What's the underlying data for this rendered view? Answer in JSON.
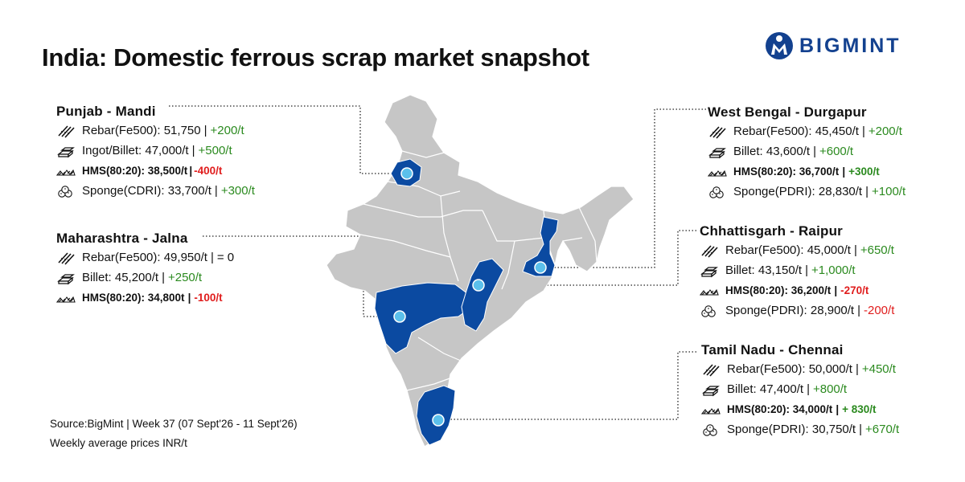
{
  "header": {
    "title": "India: Domestic ferrous scrap market snapshot",
    "brand": "BIGMINT",
    "brand_color": "#13418f"
  },
  "colors": {
    "highlight_state": "#0b4aa1",
    "marker": "#5bc0eb",
    "map_base": "#c6c6c6",
    "increase": "#2b8a1f",
    "decrease": "#e01d1d"
  },
  "icons": [
    "rebar-icon",
    "ingot-icon",
    "hms-scrap-icon",
    "sponge-iron-icon"
  ],
  "regions": {
    "punjab": {
      "title": "Punjab - Mandi",
      "rows": [
        {
          "icon": "rebar-icon",
          "label": "Rebar(Fe500): 51,750",
          "change": "+200/t",
          "dir": "up"
        },
        {
          "icon": "ingot-icon",
          "label": "Ingot/Billet: 47,000/t",
          "change": "+500/t",
          "dir": "up"
        },
        {
          "icon": "hms-scrap-icon",
          "label": "HMS(80:20): 38,500/t",
          "change": "-400/t",
          "dir": "down",
          "bold": true,
          "tight": true
        },
        {
          "icon": "sponge-iron-icon",
          "label": "Sponge(CDRI): 33,700/t",
          "change": "+300/t",
          "dir": "up"
        }
      ]
    },
    "maharashtra": {
      "title": "Maharashtra - Jalna",
      "rows": [
        {
          "icon": "rebar-icon",
          "label": "Rebar(Fe500): 49,950/t",
          "change": "= 0",
          "dir": "flat"
        },
        {
          "icon": "ingot-icon",
          "label": "Billet: 45,200/t",
          "change": "+250/t",
          "dir": "up"
        },
        {
          "icon": "hms-scrap-icon",
          "label": "HMS(80:20): 34,800t",
          "change": "-100/t",
          "dir": "down",
          "bold": true
        }
      ]
    },
    "west_bengal": {
      "title": "West Bengal - Durgapur",
      "rows": [
        {
          "icon": "rebar-icon",
          "label": "Rebar(Fe500): 45,450/t",
          "change": "+200/t",
          "dir": "up"
        },
        {
          "icon": "ingot-icon",
          "label": "Billet: 43,600/t",
          "change": "+600/t",
          "dir": "up"
        },
        {
          "icon": "hms-scrap-icon",
          "label": "HMS(80:20): 36,700/t",
          "change": "+300/t",
          "dir": "up",
          "bold": true
        },
        {
          "icon": "sponge-iron-icon",
          "label": "Sponge(PDRI): 28,830/t",
          "change": "+100/t",
          "dir": "up"
        }
      ]
    },
    "chhattisgarh": {
      "title": "Chhattisgarh - Raipur",
      "rows": [
        {
          "icon": "rebar-icon",
          "label": "Rebar(Fe500): 45,000/t",
          "change": "+650/t",
          "dir": "up"
        },
        {
          "icon": "ingot-icon",
          "label": "Billet: 43,150/t",
          "change": "+1,000/t",
          "dir": "up"
        },
        {
          "icon": "hms-scrap-icon",
          "label": "HMS(80:20): 36,200/t",
          "change": "-270/t",
          "dir": "down",
          "bold": true
        },
        {
          "icon": "sponge-iron-icon",
          "label": "Sponge(PDRI): 28,900/t",
          "change": "-200/t",
          "dir": "down"
        }
      ]
    },
    "tamil_nadu": {
      "title": "Tamil Nadu - Chennai",
      "rows": [
        {
          "icon": "rebar-icon",
          "label": "Rebar(Fe500): 50,000/t",
          "change": "+450/t",
          "dir": "up"
        },
        {
          "icon": "ingot-icon",
          "label": "Billet: 47,400/t",
          "change": "+800/t",
          "dir": "up"
        },
        {
          "icon": "hms-scrap-icon",
          "label": "HMS(80:20): 34,000/t",
          "change": "+ 830/t",
          "dir": "up",
          "bold": true
        },
        {
          "icon": "sponge-iron-icon",
          "label": "Sponge(PDRI): 30,750/t",
          "change": "+670/t",
          "dir": "up"
        }
      ]
    }
  },
  "footer": {
    "source": "Source:BigMint | Week 37  (07 Sept'26 - 11 Sept'26)",
    "note": "Weekly average prices INR/t"
  }
}
